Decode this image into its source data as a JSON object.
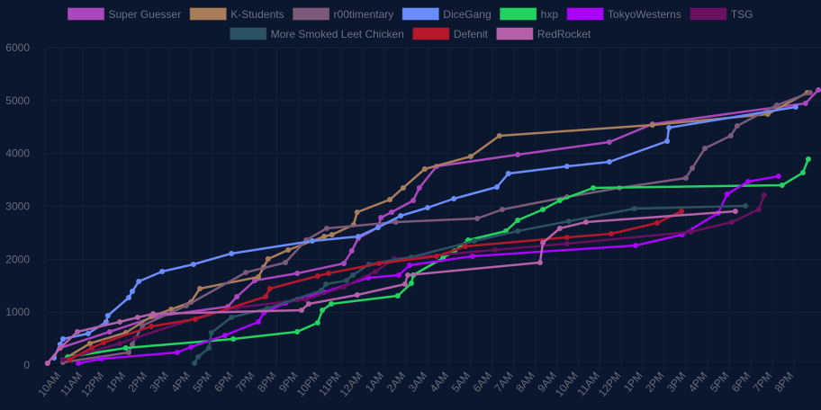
{
  "chart_data": {
    "type": "line",
    "title": "",
    "xlabel": "",
    "ylabel": "",
    "x_format": "day HH:MM (D1 = first day, D2 = second day)",
    "xlim": [
      "D1 09:20",
      "D2 21:10"
    ],
    "ylim": [
      0,
      6000
    ],
    "y_ticks": [
      0,
      1000,
      2000,
      3000,
      4000,
      5000,
      6000
    ],
    "x_ticks": [
      "10AM",
      "11AM",
      "12PM",
      "1PM",
      "2PM",
      "3PM",
      "4PM",
      "5PM",
      "6PM",
      "7PM",
      "8PM",
      "9PM",
      "10PM",
      "11PM",
      "12AM",
      "1AM",
      "2AM",
      "3AM",
      "4AM",
      "5AM",
      "6AM",
      "7AM",
      "8AM",
      "9AM",
      "10AM",
      "11AM",
      "12PM",
      "1PM",
      "2PM",
      "3PM",
      "4PM",
      "5PM",
      "6PM",
      "7PM",
      "8PM"
    ],
    "grid": true,
    "legend_position": "top",
    "background": "#0b172e",
    "series": [
      {
        "name": "Super Guesser",
        "color": "#ab47bc",
        "points": [
          [
            "D1 09:22",
            34
          ],
          [
            "D1 09:57",
            323
          ],
          [
            "D1 12:15",
            629
          ],
          [
            "D1 14:23",
            918
          ],
          [
            "D1 17:44",
            1105
          ],
          [
            "D1 18:09",
            1292
          ],
          [
            "D1 18:59",
            1598
          ],
          [
            "D1 20:57",
            1734
          ],
          [
            "D1 23:07",
            1921
          ],
          [
            "D1 23:29",
            2159
          ],
          [
            "D1 23:47",
            2397
          ],
          [
            "D2 00:42",
            2601
          ],
          [
            "D2 00:50",
            2788
          ],
          [
            "D2 01:20",
            2890
          ],
          [
            "D2 02:20",
            3111
          ],
          [
            "D2 02:37",
            3349
          ],
          [
            "D2 03:25",
            3757
          ],
          [
            "D2 07:11",
            3978
          ],
          [
            "D2 11:26",
            4216
          ],
          [
            "D2 13:26",
            4556
          ],
          [
            "D2 20:32",
            4947
          ],
          [
            "D2 21:08",
            5202
          ]
        ]
      },
      {
        "name": "K-Students",
        "color": "#a97c5a",
        "points": [
          [
            "D1 10:05",
            102
          ],
          [
            "D1 11:20",
            408
          ],
          [
            "D1 13:00",
            612
          ],
          [
            "D1 14:11",
            918
          ],
          [
            "D1 15:06",
            1054
          ],
          [
            "D1 16:01",
            1190
          ],
          [
            "D1 16:26",
            1445
          ],
          [
            "D1 19:09",
            1666
          ],
          [
            "D1 19:24",
            1853
          ],
          [
            "D1 19:36",
            2006
          ],
          [
            "D1 20:32",
            2176
          ],
          [
            "D1 22:12",
            2431
          ],
          [
            "D1 22:34",
            2465
          ],
          [
            "D1 23:34",
            2652
          ],
          [
            "D1 23:44",
            2890
          ],
          [
            "D2 01:15",
            3128
          ],
          [
            "D2 01:52",
            3349
          ],
          [
            "D2 02:52",
            3706
          ],
          [
            "D2 05:00",
            3944
          ],
          [
            "D2 06:20",
            4335
          ],
          [
            "D2 13:26",
            4539
          ],
          [
            "D2 18:47",
            4743
          ],
          [
            "D2 20:37",
            5151
          ]
        ]
      },
      {
        "name": "r00timentary",
        "color": "#7a5a78",
        "points": [
          [
            "D1 10:05",
            51
          ],
          [
            "D1 13:08",
            238
          ],
          [
            "D1 13:18",
            391
          ],
          [
            "D1 13:46",
            748
          ],
          [
            "D1 15:48",
            1122
          ],
          [
            "D1 18:34",
            1751
          ],
          [
            "D1 20:24",
            1938
          ],
          [
            "D1 21:22",
            2363
          ],
          [
            "D1 22:19",
            2584
          ],
          [
            "D2 01:32",
            2703
          ],
          [
            "D2 05:18",
            2771
          ],
          [
            "D2 06:28",
            2941
          ],
          [
            "D2 09:28",
            3179
          ],
          [
            "D2 11:54",
            3349
          ],
          [
            "D2 14:59",
            3536
          ],
          [
            "D2 15:17",
            3723
          ],
          [
            "D2 15:52",
            4097
          ],
          [
            "D2 17:04",
            4335
          ],
          [
            "D2 17:22",
            4522
          ],
          [
            "D2 19:12",
            4913
          ],
          [
            "D2 20:45",
            5151
          ]
        ]
      },
      {
        "name": "DiceGang",
        "color": "#6b8cff",
        "points": [
          [
            "D1 09:40",
            136
          ],
          [
            "D1 09:57",
            391
          ],
          [
            "D1 10:05",
            493
          ],
          [
            "D1 11:15",
            595
          ],
          [
            "D1 12:05",
            816
          ],
          [
            "D1 12:10",
            935
          ],
          [
            "D1 13:08",
            1275
          ],
          [
            "D1 13:18",
            1394
          ],
          [
            "D1 13:36",
            1581
          ],
          [
            "D1 14:41",
            1768
          ],
          [
            "D1 16:08",
            1904
          ],
          [
            "D1 17:54",
            2108
          ],
          [
            "D1 21:39",
            2346
          ],
          [
            "D1 23:47",
            2431
          ],
          [
            "D2 00:42",
            2601
          ],
          [
            "D2 01:45",
            2822
          ],
          [
            "D2 03:00",
            2975
          ],
          [
            "D2 04:13",
            3145
          ],
          [
            "D2 06:13",
            3366
          ],
          [
            "D2 06:45",
            3621
          ],
          [
            "D2 09:28",
            3757
          ],
          [
            "D2 11:26",
            3842
          ],
          [
            "D2 14:07",
            4233
          ],
          [
            "D2 14:12",
            4488
          ],
          [
            "D2 20:05",
            4879
          ]
        ]
      },
      {
        "name": "hxp",
        "color": "#22d35f",
        "points": [
          [
            "D1 10:18",
            153
          ],
          [
            "D1 13:00",
            323
          ],
          [
            "D1 17:59",
            493
          ],
          [
            "D1 20:57",
            629
          ],
          [
            "D1 21:54",
            799
          ],
          [
            "D1 22:07",
            1037
          ],
          [
            "D1 22:32",
            1156
          ],
          [
            "D2 01:37",
            1309
          ],
          [
            "D2 02:15",
            1547
          ],
          [
            "D2 02:20",
            1700
          ],
          [
            "D2 03:43",
            2023
          ],
          [
            "D2 04:15",
            2159
          ],
          [
            "D2 04:53",
            2363
          ],
          [
            "D2 06:38",
            2533
          ],
          [
            "D2 07:11",
            2737
          ],
          [
            "D2 08:21",
            2941
          ],
          [
            "D2 09:08",
            3111
          ],
          [
            "D2 10:41",
            3349
          ],
          [
            "D2 19:27",
            3400
          ],
          [
            "D2 20:25",
            3638
          ],
          [
            "D2 20:40",
            3893
          ]
        ]
      },
      {
        "name": "TokyoWesterns",
        "color": "#aa00ff",
        "points": [
          [
            "D1 10:48",
            34
          ],
          [
            "D1 11:53",
            119
          ],
          [
            "D1 15:23",
            238
          ],
          [
            "D1 16:01",
            340
          ],
          [
            "D1 17:36",
            561
          ],
          [
            "D1 19:09",
            816
          ],
          [
            "D1 19:24",
            986
          ],
          [
            "D1 20:24",
            1173
          ],
          [
            "D1 20:57",
            1241
          ],
          [
            "D1 22:12",
            1377
          ],
          [
            "D2 00:15",
            1649
          ],
          [
            "D2 01:40",
            1700
          ],
          [
            "D2 02:10",
            1887
          ],
          [
            "D2 05:05",
            2057
          ],
          [
            "D2 12:39",
            2261
          ],
          [
            "D2 14:49",
            2465
          ],
          [
            "D2 16:29",
            2873
          ],
          [
            "D2 16:54",
            3230
          ],
          [
            "D2 17:52",
            3468
          ],
          [
            "D2 19:17",
            3570
          ]
        ]
      },
      {
        "name": "TSG",
        "color": "#6a1060",
        "points": [
          [
            "D1 10:05",
            102
          ],
          [
            "D1 12:43",
            408
          ],
          [
            "D1 13:25",
            510
          ],
          [
            "D1 16:53",
            969
          ],
          [
            "D1 18:09",
            1088
          ],
          [
            "D1 21:22",
            1241
          ],
          [
            "D1 23:07",
            1479
          ],
          [
            "D2 00:35",
            1768
          ],
          [
            "D2 01:27",
            2006
          ],
          [
            "D2 06:08",
            2176
          ],
          [
            "D2 09:28",
            2295
          ],
          [
            "D2 15:12",
            2516
          ],
          [
            "D2 17:07",
            2703
          ],
          [
            "D2 18:22",
            2941
          ],
          [
            "D2 18:37",
            3213
          ]
        ]
      },
      {
        "name": "More Smoked Leet Chicken",
        "color": "#2a5263",
        "points": [
          [
            "D1 16:11",
            34
          ],
          [
            "D1 16:21",
            153
          ],
          [
            "D1 16:51",
            323
          ],
          [
            "D1 16:58",
            612
          ],
          [
            "D1 17:54",
            901
          ],
          [
            "D1 19:34",
            1071
          ],
          [
            "D1 22:04",
            1411
          ],
          [
            "D1 22:17",
            1530
          ],
          [
            "D1 23:14",
            1598
          ],
          [
            "D1 23:32",
            1700
          ],
          [
            "D2 00:17",
            1904
          ],
          [
            "D2 02:15",
            2040
          ],
          [
            "D2 05:10",
            2346
          ],
          [
            "D2 07:11",
            2533
          ],
          [
            "D2 09:33",
            2720
          ],
          [
            "D2 12:36",
            2958
          ],
          [
            "D2 17:45",
            3009
          ]
        ]
      },
      {
        "name": "Defenit",
        "color": "#b5172b",
        "points": [
          [
            "D1 10:23",
            102
          ],
          [
            "D1 11:25",
            323
          ],
          [
            "D1 11:58",
            425
          ],
          [
            "D1 14:11",
            731
          ],
          [
            "D1 16:13",
            867
          ],
          [
            "D1 19:29",
            1292
          ],
          [
            "D1 19:41",
            1445
          ],
          [
            "D1 21:54",
            1683
          ],
          [
            "D1 22:24",
            1734
          ],
          [
            "D2 00:45",
            1921
          ],
          [
            "D2 03:25",
            2057
          ],
          [
            "D2 04:45",
            2244
          ],
          [
            "D2 09:28",
            2414
          ],
          [
            "D2 11:31",
            2482
          ],
          [
            "D2 13:39",
            2686
          ],
          [
            "D2 14:47",
            2907
          ]
        ]
      },
      {
        "name": "RedRocket",
        "color": "#b560a8",
        "points": [
          [
            "D1 09:22",
            34
          ],
          [
            "D1 09:57",
            323
          ],
          [
            "D1 10:45",
            629
          ],
          [
            "D1 12:43",
            816
          ],
          [
            "D1 13:33",
            901
          ],
          [
            "D1 14:16",
            969
          ],
          [
            "D1 21:09",
            1037
          ],
          [
            "D1 21:29",
            1156
          ],
          [
            "D1 23:44",
            1326
          ],
          [
            "D2 01:57",
            1530
          ],
          [
            "D2 02:05",
            1700
          ],
          [
            "D2 08:13",
            1938
          ],
          [
            "D2 08:21",
            2312
          ],
          [
            "D2 09:08",
            2584
          ],
          [
            "D2 10:21",
            2703
          ],
          [
            "D2 17:17",
            2907
          ]
        ]
      }
    ]
  }
}
